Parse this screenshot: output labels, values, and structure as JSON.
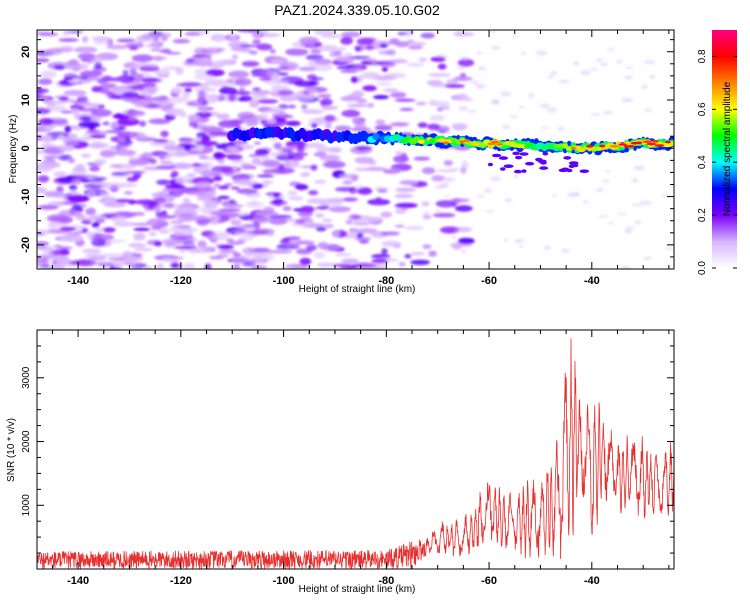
{
  "title": "PAZ1.2024.339.05.10.G02",
  "chart_data": [
    {
      "type": "heatmap",
      "xlabel": "Height of straight line (km)",
      "ylabel": "Frequency (Hz)",
      "xlim": [
        -148,
        -24
      ],
      "ylim": [
        -25,
        24.5
      ],
      "x_ticks": [
        -140,
        -120,
        -100,
        -80,
        -60,
        -40
      ],
      "y_ticks": [
        -20,
        -10,
        0,
        10,
        20
      ],
      "colorbar": {
        "label": "Normalized spectral amplitude",
        "range": [
          0,
          0.9
        ],
        "ticks": [
          0.0,
          0.2,
          0.4,
          0.6,
          0.8
        ],
        "colormap": [
          "#ffffff",
          "#d8b4ff",
          "#7a00ff",
          "#0000ff",
          "#00ffff",
          "#00ff00",
          "#ffff00",
          "#ff8000",
          "#ff0000",
          "#ff0080"
        ]
      },
      "signal_track": {
        "x": [
          -110,
          -100,
          -90,
          -80,
          -70,
          -60,
          -50,
          -40,
          -30,
          -24
        ],
        "frequency": [
          3,
          3,
          2.5,
          2,
          1.5,
          1,
          0.5,
          0,
          1,
          1
        ],
        "amplitude": [
          0.3,
          0.3,
          0.3,
          0.4,
          0.65,
          0.7,
          0.5,
          0.75,
          0.8,
          0.8
        ]
      },
      "noise_region_x": [
        -148,
        -70
      ]
    },
    {
      "type": "line",
      "xlabel": "Height of straight line (km)",
      "ylabel": "SNR (10 * v/v)",
      "xlim": [
        -148,
        -24
      ],
      "ylim": [
        0,
        3750
      ],
      "x_ticks": [
        -140,
        -120,
        -100,
        -80,
        -60,
        -40
      ],
      "y_ticks": [
        1000,
        2000,
        3000
      ],
      "color": "#e53030",
      "envelope": {
        "x": [
          -148,
          -80,
          -75,
          -72,
          -70,
          -65,
          -60,
          -55,
          -50,
          -47,
          -45,
          -43.7,
          -42,
          -40,
          -38,
          -35,
          -32,
          -30,
          -27,
          -24
        ],
        "low": [
          0,
          0,
          0,
          200,
          200,
          150,
          300,
          200,
          100,
          0,
          300,
          500,
          1200,
          200,
          1000,
          800,
          900,
          700,
          800,
          800
        ],
        "high": [
          280,
          300,
          450,
          500,
          750,
          800,
          1450,
          1200,
          1600,
          2200,
          3300,
          3750,
          2500,
          3050,
          2600,
          2100,
          2200,
          2100,
          1900,
          2050
        ]
      }
    }
  ]
}
